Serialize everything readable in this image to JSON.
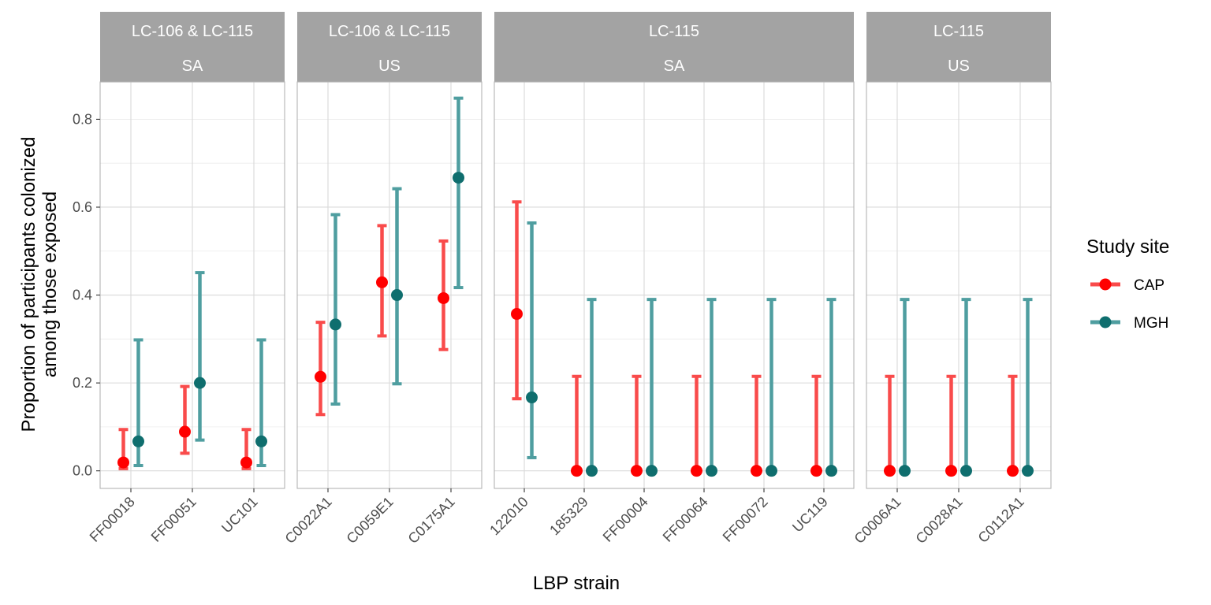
{
  "chart_data": {
    "type": "scatter",
    "subtype": "faceted point-range (dot with error bars)",
    "xlabel": "LBP strain",
    "ylabel_line1": "Proportion of participants colonized",
    "ylabel_line2": "among those exposed",
    "ylim": [
      -0.04,
      0.885
    ],
    "yticks": [
      0.0,
      0.2,
      0.4,
      0.6,
      0.8
    ],
    "ytick_labels": [
      "0.0",
      "0.2",
      "0.4",
      "0.6",
      "0.8"
    ],
    "grid": true,
    "legend": {
      "title": "Study site",
      "position": "right",
      "entries": [
        "CAP",
        "MGH"
      ]
    },
    "series_colors": {
      "CAP": "#ff0000",
      "MGH": "#0f6e6e"
    },
    "bar_colors": {
      "CAP": "#f94b4b",
      "MGH": "#4f9ea0"
    },
    "panels": [
      {
        "strip_line1": "LC-106 & LC-115",
        "strip_line2": "SA",
        "categories": [
          "FF00018",
          "FF00051",
          "UC101"
        ],
        "series": [
          {
            "name": "CAP",
            "values": [
              0.019,
              0.089,
              0.019
            ],
            "lower": [
              0.005,
              0.04,
              0.005
            ],
            "upper": [
              0.094,
              0.192,
              0.094
            ]
          },
          {
            "name": "MGH",
            "values": [
              0.067,
              0.2,
              0.067
            ],
            "lower": [
              0.012,
              0.07,
              0.012
            ],
            "upper": [
              0.298,
              0.451,
              0.298
            ]
          }
        ]
      },
      {
        "strip_line1": "LC-106 & LC-115",
        "strip_line2": "US",
        "categories": [
          "C0022A1",
          "C0059E1",
          "C0175A1"
        ],
        "series": [
          {
            "name": "CAP",
            "values": [
              0.214,
              0.429,
              0.393
            ],
            "lower": [
              0.128,
              0.307,
              0.276
            ],
            "upper": [
              0.338,
              0.558,
              0.523
            ]
          },
          {
            "name": "MGH",
            "values": [
              0.333,
              0.4,
              0.667
            ],
            "lower": [
              0.152,
              0.198,
              0.417
            ],
            "upper": [
              0.583,
              0.642,
              0.848
            ]
          }
        ]
      },
      {
        "strip_line1": "LC-115",
        "strip_line2": "SA",
        "categories": [
          "122010",
          "185329",
          "FF00004",
          "FF00064",
          "FF00072",
          "UC119"
        ],
        "series": [
          {
            "name": "CAP",
            "values": [
              0.357,
              0.0,
              0.0,
              0.0,
              0.0,
              0.0
            ],
            "lower": [
              0.164,
              0.0,
              0.0,
              0.0,
              0.0,
              0.0
            ],
            "upper": [
              0.612,
              0.215,
              0.215,
              0.215,
              0.215,
              0.215
            ]
          },
          {
            "name": "MGH",
            "values": [
              0.167,
              0.0,
              0.0,
              0.0,
              0.0,
              0.0
            ],
            "lower": [
              0.03,
              0.0,
              0.0,
              0.0,
              0.0,
              0.0
            ],
            "upper": [
              0.564,
              0.39,
              0.39,
              0.39,
              0.39,
              0.39
            ]
          }
        ]
      },
      {
        "strip_line1": "LC-115",
        "strip_line2": "US",
        "categories": [
          "C0006A1",
          "C0028A1",
          "C0112A1"
        ],
        "series": [
          {
            "name": "CAP",
            "values": [
              0.0,
              0.0,
              0.0
            ],
            "lower": [
              0.0,
              0.0,
              0.0
            ],
            "upper": [
              0.215,
              0.215,
              0.215
            ]
          },
          {
            "name": "MGH",
            "values": [
              0.0,
              0.0,
              0.0
            ],
            "lower": [
              0.0,
              0.0,
              0.0
            ],
            "upper": [
              0.39,
              0.39,
              0.39
            ]
          }
        ]
      }
    ]
  }
}
